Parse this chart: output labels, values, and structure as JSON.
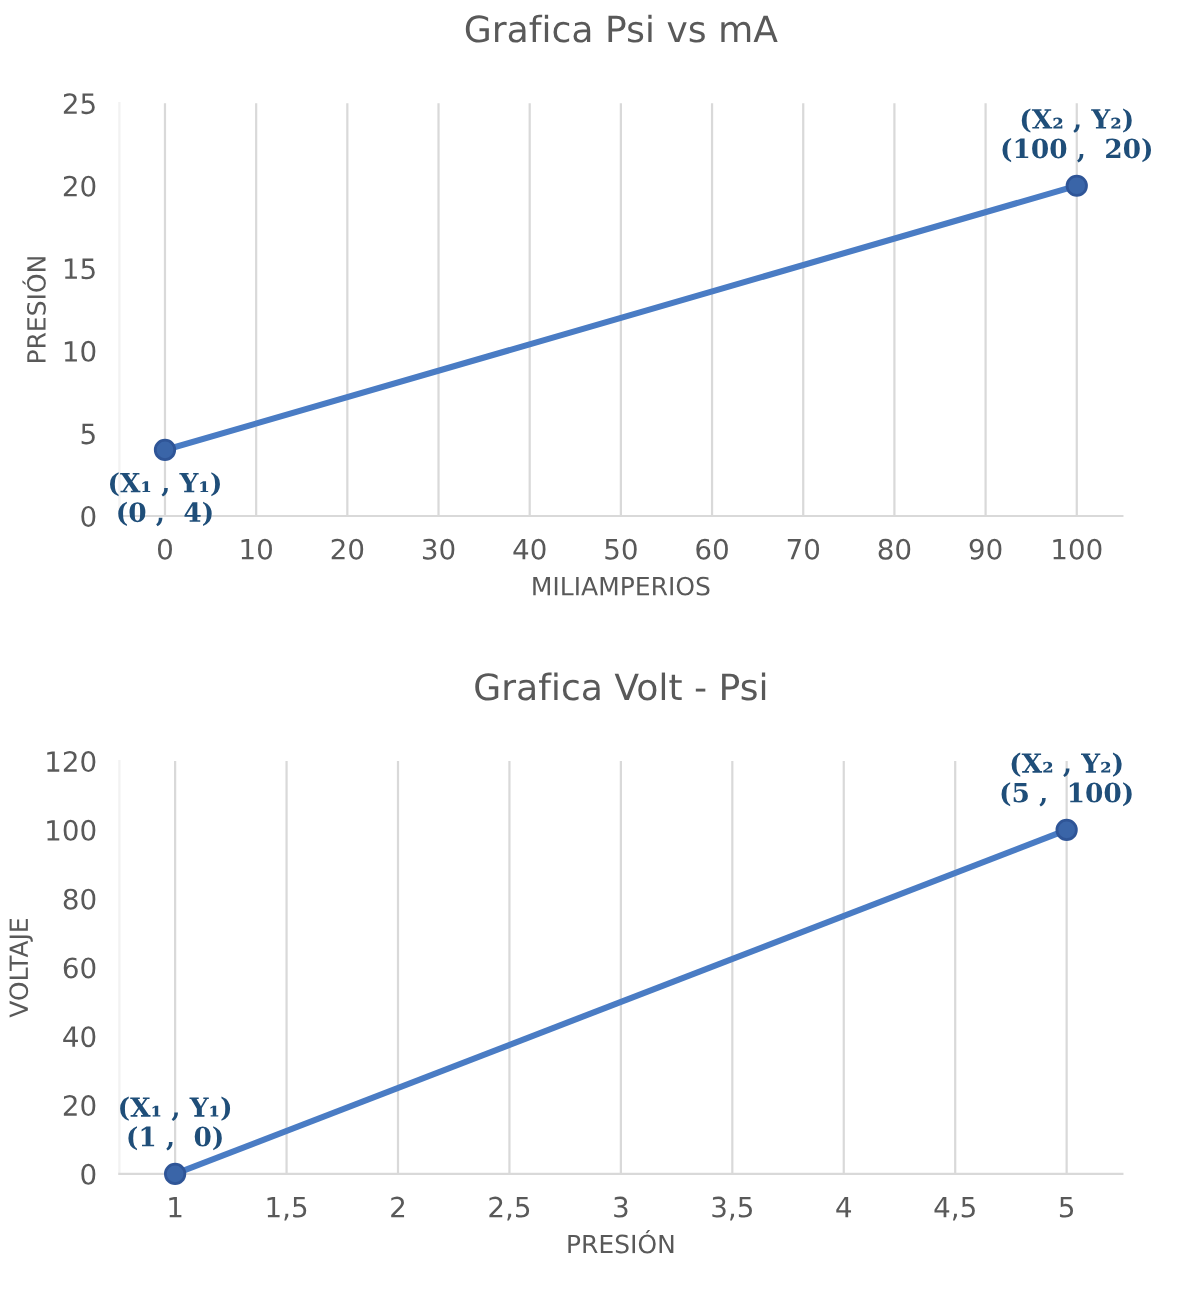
{
  "chart_data": [
    {
      "type": "line",
      "title": "Grafica Psi vs mA",
      "xlabel": "MILIAMPERIOS",
      "ylabel": "PRESIÓN",
      "series": [
        {
          "color": "#4a7cc4",
          "x": [
            0,
            100
          ],
          "values": [
            4,
            20
          ]
        }
      ],
      "marker": "circle",
      "xlim": [
        -5,
        105
      ],
      "xticks": [
        0,
        10,
        20,
        30,
        40,
        50,
        60,
        70,
        80,
        90,
        100
      ],
      "ylim": [
        0,
        25
      ],
      "yticks": [
        0,
        5,
        10,
        15,
        20,
        25
      ],
      "grid": "x",
      "annotations": [
        {
          "text": "(X₁ , Y₁)\n(0 ,  4)",
          "x": 0,
          "y": 4
        },
        {
          "text": "(X₂ , Y₂)\n(100 ,  20)",
          "x": 100,
          "y": 20
        }
      ]
    },
    {
      "type": "line",
      "title": "Grafica Volt - Psi",
      "xlabel": "PRESIÓN",
      "ylabel": "VOLTAJE",
      "series": [
        {
          "color": "#4a7cc4",
          "x": [
            1,
            5
          ],
          "values": [
            0,
            100
          ]
        }
      ],
      "marker": "circle",
      "xlim": [
        0.75,
        5.25
      ],
      "xticks": [
        1,
        {
          "value": 1.5,
          "label": "1,5"
        },
        2,
        {
          "value": 2.5,
          "label": "2,5"
        },
        3,
        {
          "value": 3.5,
          "label": "3,5"
        },
        4,
        {
          "value": 4.5,
          "label": "4,5"
        },
        5
      ],
      "ylim": [
        0,
        120
      ],
      "yticks": [
        0,
        20,
        40,
        60,
        80,
        100,
        120
      ],
      "grid": "x",
      "annotations": [
        {
          "text": "(X₁ , Y₁)\n(1 ,  0)",
          "x": 1,
          "y": 0
        },
        {
          "text": "(X₂ , Y₂)\n(5 ,  100)",
          "x": 5,
          "y": 100
        }
      ]
    }
  ]
}
